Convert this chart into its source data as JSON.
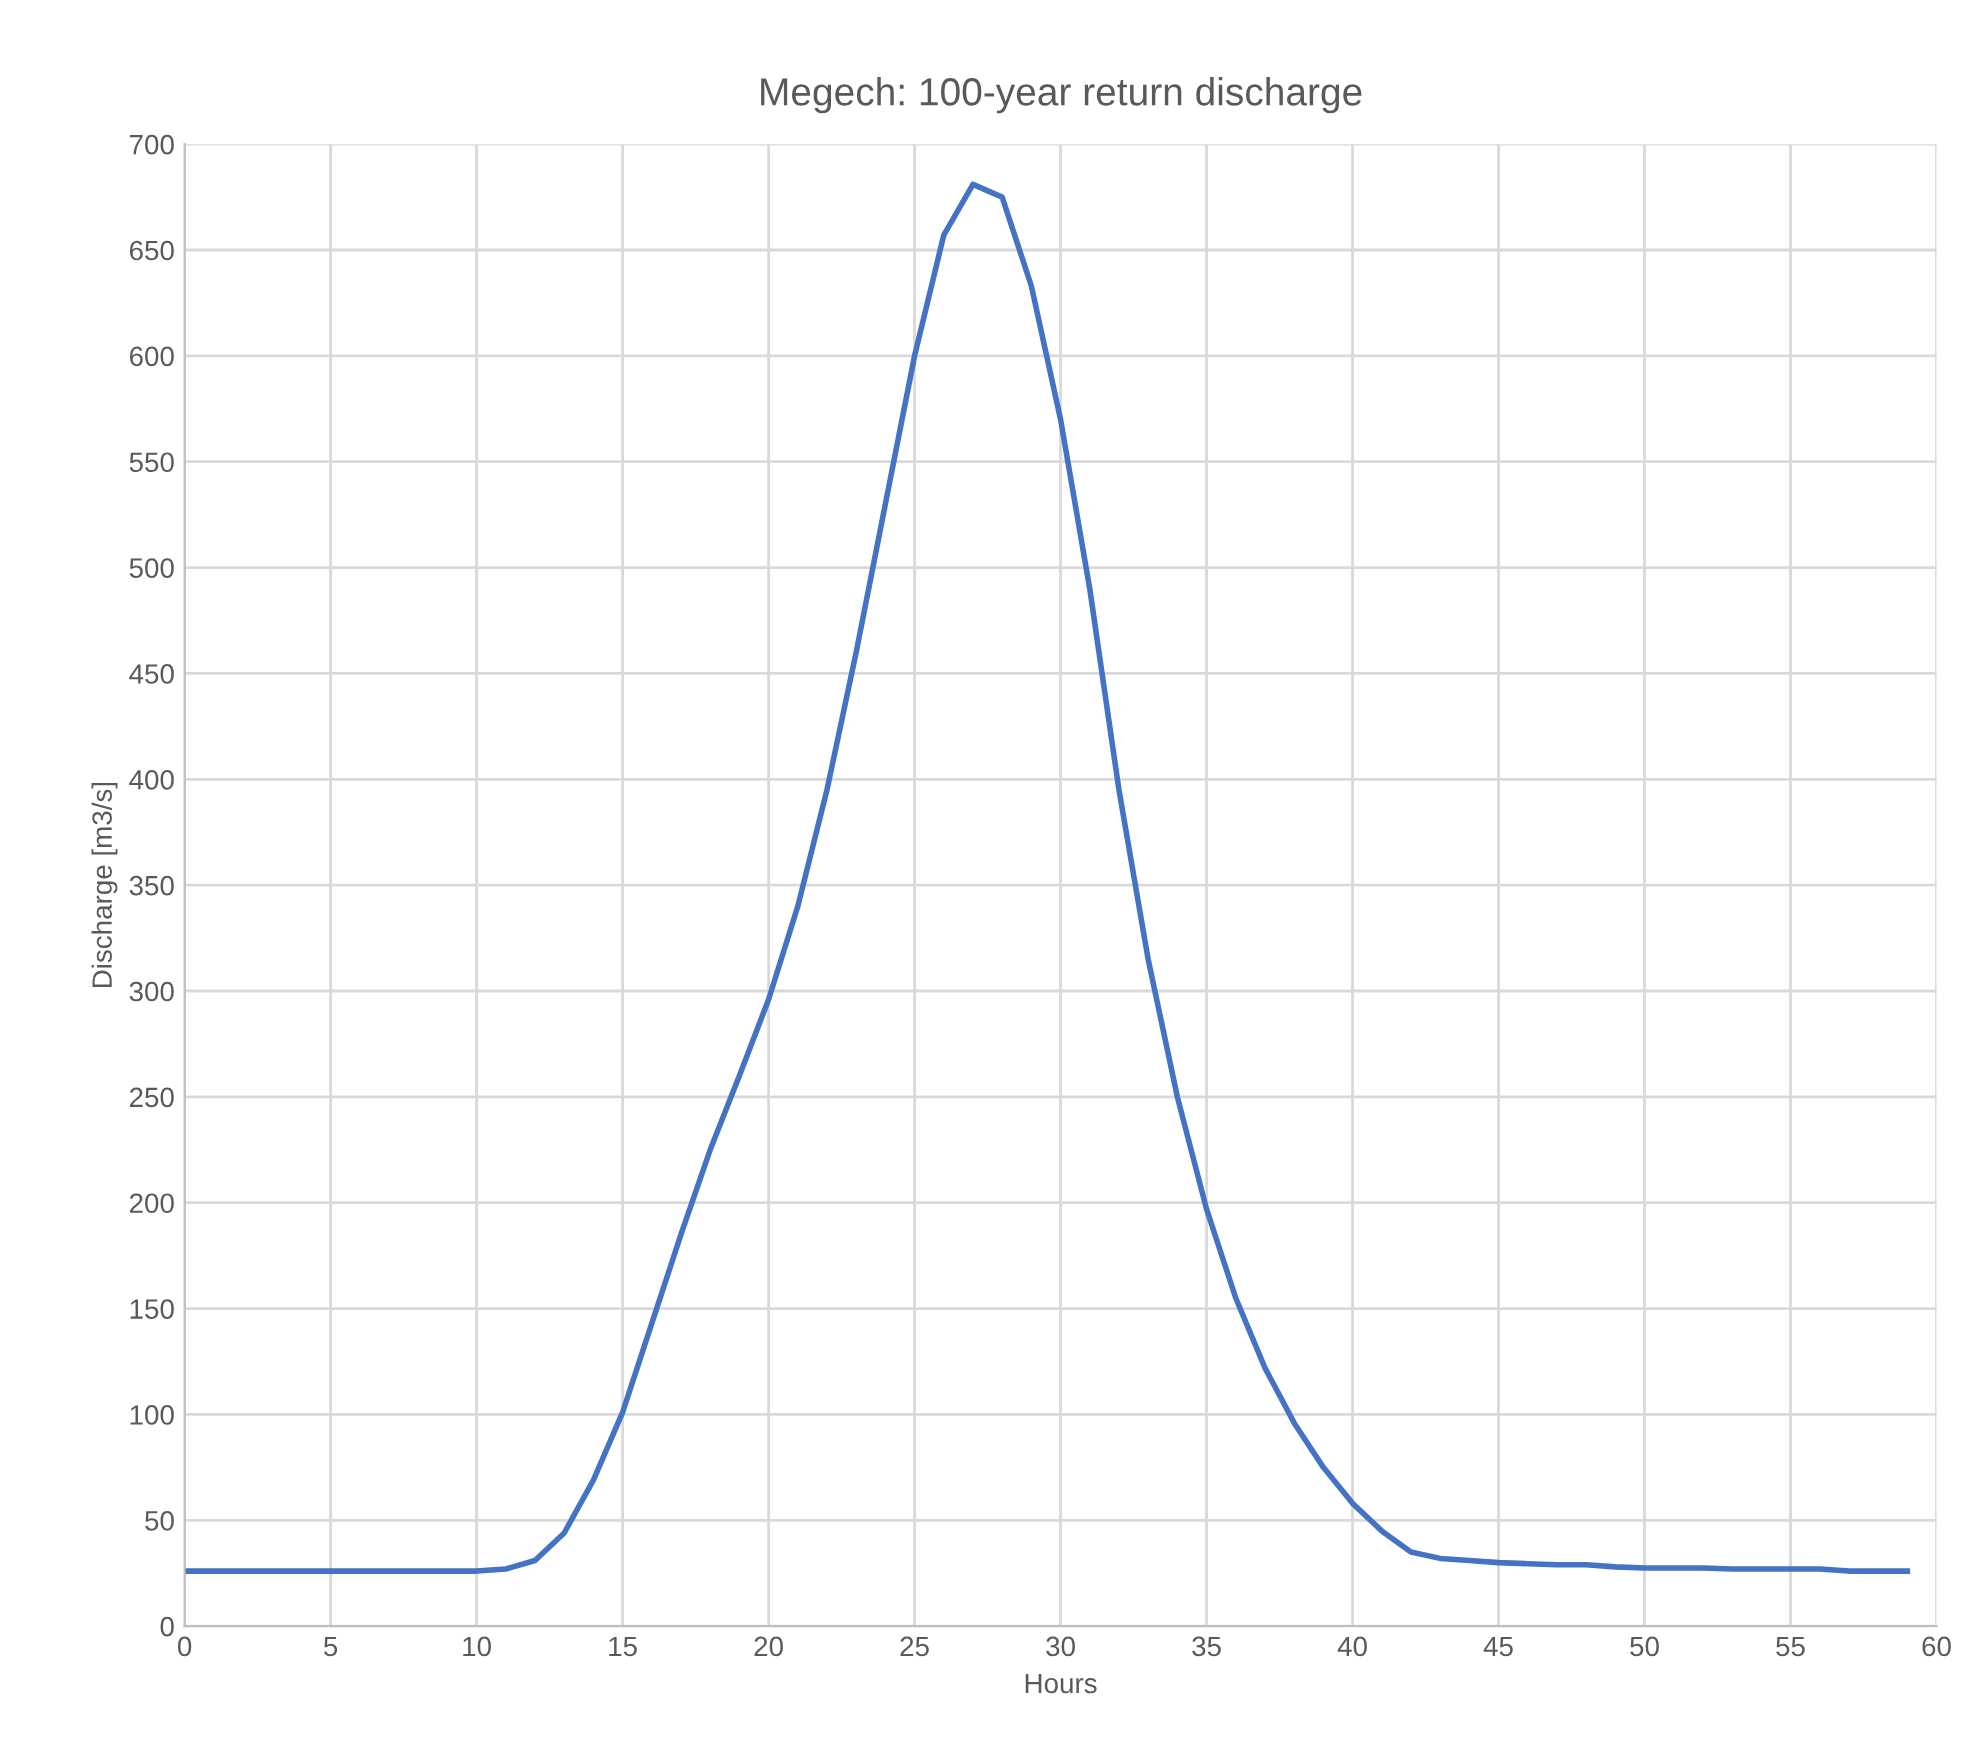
{
  "chart_data": {
    "type": "line",
    "title": "Megech: 100-year return discharge",
    "xlabel": "Hours",
    "ylabel": "Discharge [m3/s]",
    "x": [
      0,
      1,
      2,
      3,
      4,
      5,
      6,
      7,
      8,
      9,
      10,
      11,
      12,
      13,
      14,
      15,
      16,
      17,
      18,
      19,
      20,
      21,
      22,
      23,
      24,
      25,
      26,
      27,
      28,
      29,
      30,
      31,
      32,
      33,
      34,
      35,
      36,
      37,
      38,
      39,
      40,
      41,
      42,
      43,
      44,
      45,
      46,
      47,
      48,
      49,
      50,
      51,
      52,
      53,
      54,
      55,
      56,
      57,
      58,
      59
    ],
    "series": [
      {
        "color": "#4472c4",
        "values": [
          26,
          26,
          26,
          26,
          26,
          26,
          26,
          26,
          26,
          26,
          26,
          27,
          31,
          44,
          69,
          101,
          143,
          185,
          225,
          260,
          296,
          340,
          395,
          460,
          530,
          600,
          657,
          681,
          675,
          633,
          570,
          490,
          395,
          315,
          250,
          197,
          155,
          122,
          96,
          75,
          58,
          45,
          35,
          32,
          31,
          30,
          29.5,
          29,
          29,
          28,
          27.5,
          27.5,
          27.5,
          27,
          27,
          27,
          27,
          26,
          26,
          26
        ]
      }
    ],
    "xlim": [
      0,
      60
    ],
    "xticks": [
      0,
      5,
      10,
      15,
      20,
      25,
      30,
      35,
      40,
      45,
      50,
      55,
      60
    ],
    "ylim": [
      0,
      700
    ],
    "yticks": [
      0,
      50,
      100,
      150,
      200,
      250,
      300,
      350,
      400,
      450,
      500,
      550,
      600,
      650,
      700
    ],
    "grid": true,
    "legend": false,
    "marker": "none",
    "line_style": "solid"
  }
}
